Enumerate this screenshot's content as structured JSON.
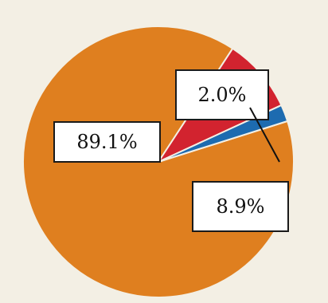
{
  "chart_data": {
    "type": "pie",
    "slices": [
      {
        "value": 89.1,
        "label": "89.1%",
        "color": "#df7f1f"
      },
      {
        "value": 8.9,
        "label": "8.9%",
        "color": "#d2232f"
      },
      {
        "value": 2.0,
        "label": "2.0%",
        "color": "#1d6bb0"
      }
    ],
    "legend": false,
    "grid": false
  }
}
